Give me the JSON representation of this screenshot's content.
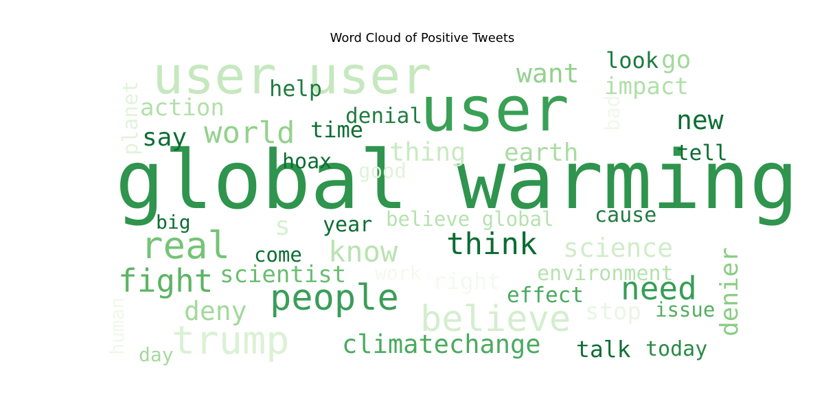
{
  "chart_data": {
    "type": "wordcloud",
    "title": "Word Cloud of Positive Tweets",
    "colormap": "Greens",
    "words": [
      {
        "text": "global warming",
        "color": "#2f944d"
      },
      {
        "text": "user",
        "color": "#39a055"
      },
      {
        "text": "user user",
        "color": "#c6e8bf"
      },
      {
        "text": "people",
        "color": "#3a9d58"
      },
      {
        "text": "believe",
        "color": "#d4eecd"
      },
      {
        "text": "trump",
        "color": "#dbf1d5"
      },
      {
        "text": "real",
        "color": "#74c476"
      },
      {
        "text": "think",
        "color": "#0c6b32"
      },
      {
        "text": "world",
        "color": "#93d18c"
      },
      {
        "text": "fight",
        "color": "#5cb465"
      },
      {
        "text": "know",
        "color": "#b8e3b1"
      },
      {
        "text": "science",
        "color": "#d1ecca"
      },
      {
        "text": "need",
        "color": "#379d56"
      },
      {
        "text": "climatechange",
        "color": "#4aaa5f"
      },
      {
        "text": "denier",
        "color": "#8acd83"
      },
      {
        "text": "deny",
        "color": "#a2d99b"
      },
      {
        "text": "new",
        "color": "#0c6d33"
      },
      {
        "text": "want",
        "color": "#93d18c"
      },
      {
        "text": "impact",
        "color": "#afe0a8"
      },
      {
        "text": "action",
        "color": "#b0e0a8"
      },
      {
        "text": "say",
        "color": "#0f6d33"
      },
      {
        "text": "time",
        "color": "#0f6d33"
      },
      {
        "text": "thing",
        "color": "#c9eac2"
      },
      {
        "text": "earth",
        "color": "#a9dca1"
      },
      {
        "text": "help",
        "color": "#217b40"
      },
      {
        "text": "denial",
        "color": "#217b40"
      },
      {
        "text": "look",
        "color": "#1b7a3d"
      },
      {
        "text": "go",
        "color": "#a3d99c"
      },
      {
        "text": "tell",
        "color": "#0c6d33"
      },
      {
        "text": "hoax",
        "color": "#0c6d33"
      },
      {
        "text": "good",
        "color": "#dff3da"
      },
      {
        "text": "believe global",
        "color": "#b5e2ae"
      },
      {
        "text": "cause",
        "color": "#217b40"
      },
      {
        "text": "year",
        "color": "#0c6d33"
      },
      {
        "text": "big",
        "color": "#0c6d33"
      },
      {
        "text": "s",
        "color": "#d8efd2"
      },
      {
        "text": "come",
        "color": "#0c6d33"
      },
      {
        "text": "scientist",
        "color": "#6abd6f"
      },
      {
        "text": "environment",
        "color": "#b6e2af"
      },
      {
        "text": "effect",
        "color": "#4aaa5f"
      },
      {
        "text": "issue",
        "color": "#52ae62"
      },
      {
        "text": "stop",
        "color": "#e9f6e4"
      },
      {
        "text": "talk",
        "color": "#0f6d33"
      },
      {
        "text": "today",
        "color": "#2a8a47"
      },
      {
        "text": "day",
        "color": "#a3d99c"
      },
      {
        "text": "planet",
        "color": "#e2f3dc"
      },
      {
        "text": "bad",
        "color": "#eef8ea"
      },
      {
        "text": "human",
        "color": "#eef8ea"
      },
      {
        "text": "work",
        "color": "#f2faef"
      },
      {
        "text": "right",
        "color": "#f2faef"
      }
    ]
  }
}
